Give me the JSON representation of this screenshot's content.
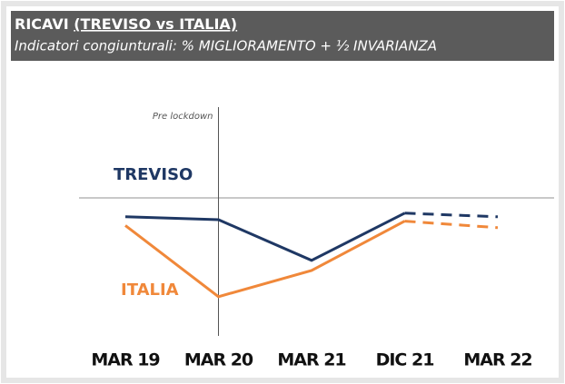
{
  "chart_data": {
    "type": "line",
    "title": "RICAVI",
    "title_underlined": "(TREVISO vs ITALIA)",
    "subtitle": "Indicatori congiunturali: % MIGLIORAMENTO + ½ INVARIANZA",
    "categories": [
      "MAR 19",
      "MAR 20",
      "MAR 21",
      "DIC 21",
      "MAR 22"
    ],
    "series": [
      {
        "name": "TREVISO",
        "color": "#1f3864",
        "values": [
          47.4,
          47.0,
          41.4,
          47.9,
          47.4
        ]
      },
      {
        "name": "ITALIA",
        "color": "#f0883a",
        "values": [
          46.2,
          36.4,
          40.0,
          46.8,
          45.9
        ]
      }
    ],
    "ylim": [
      30,
      55
    ],
    "reference_line": 50,
    "dashed_from": "DIC 21",
    "annotation": {
      "text": "Pre lockdown",
      "category": "MAR 20"
    }
  }
}
